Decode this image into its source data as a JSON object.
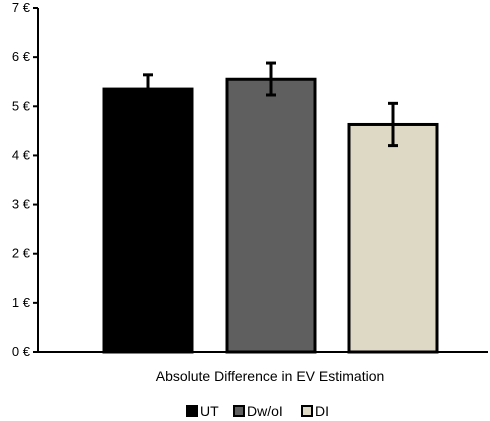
{
  "chart_data": {
    "type": "bar",
    "title": "",
    "xlabel": "Absolute Difference in EV Estimation",
    "ylabel": "",
    "ylim": [
      0,
      7
    ],
    "y_ticks": [
      {
        "value": 0,
        "label": "0 €"
      },
      {
        "value": 1,
        "label": "1 €"
      },
      {
        "value": 2,
        "label": "2 €"
      },
      {
        "value": 3,
        "label": "3 €"
      },
      {
        "value": 4,
        "label": "4 €"
      },
      {
        "value": 5,
        "label": "5 €"
      },
      {
        "value": 6,
        "label": "6 €"
      },
      {
        "value": 7,
        "label": "7 €"
      }
    ],
    "grid": false,
    "legend_position": "bottom",
    "series": [
      {
        "name": "UT",
        "value": 5.35,
        "error_low": 5.07,
        "error_high": 5.64,
        "color": "#000000"
      },
      {
        "name": "Dw/oI",
        "value": 5.55,
        "error_low": 5.23,
        "error_high": 5.88,
        "color": "#5f5f5f"
      },
      {
        "name": "DI",
        "value": 4.63,
        "error_low": 4.2,
        "error_high": 5.06,
        "color": "#ddd9c4"
      }
    ]
  }
}
